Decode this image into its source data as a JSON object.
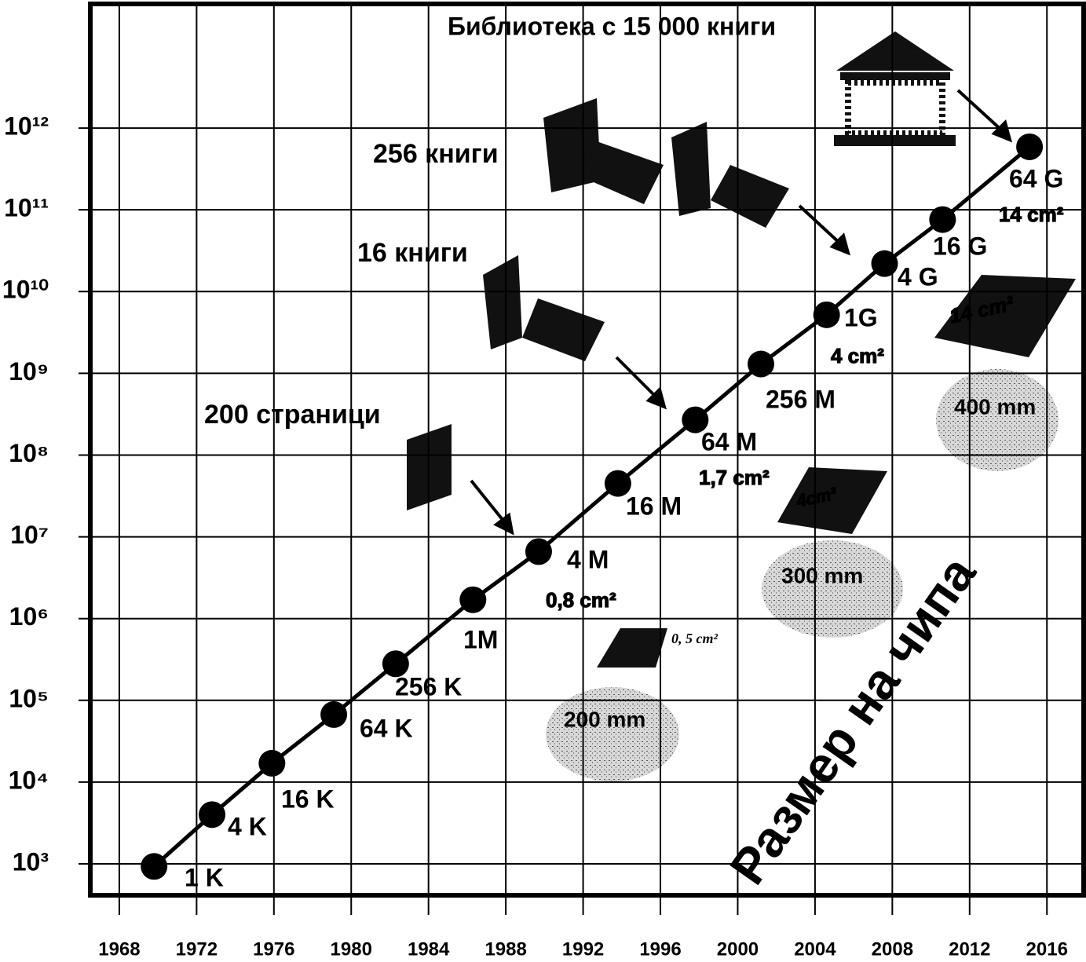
{
  "chart_data": {
    "type": "line",
    "log_y": true,
    "grid": true,
    "color": "#000000",
    "x": [
      1969.8,
      1972.8,
      1975.9,
      1979.1,
      1982.3,
      1986.3,
      1989.7,
      1993.8,
      1997.8,
      2001.2,
      2004.6,
      2007.6,
      2010.6,
      2015.1
    ],
    "values": [
      930,
      4000,
      17000,
      67000,
      280000,
      1700000,
      6600000,
      45000000,
      270000000,
      1300000000,
      5200000000,
      22000000000,
      76000000000,
      590000000000
    ],
    "point_labels": [
      "1 K",
      "4 K",
      "16 K",
      "64 K",
      "256 K",
      "1M",
      "4 M",
      "16 M",
      "64 M",
      "256 M",
      "1G",
      "4 G",
      "16 G",
      "64 G"
    ],
    "xlim": [
      1966.5,
      2017.9
    ],
    "xticks": [
      1968,
      1972,
      1976,
      1980,
      1984,
      1988,
      1992,
      1996,
      2000,
      2004,
      2008,
      2012,
      2016
    ],
    "ylim": [
      413,
      33000000000000
    ],
    "yticks": [
      {
        "value": 1000,
        "label": "10³"
      },
      {
        "value": 10000,
        "label": "10⁴"
      },
      {
        "value": 100000,
        "label": "10⁵"
      },
      {
        "value": 1000000,
        "label": "10⁶"
      },
      {
        "value": 10000000,
        "label": "10⁷"
      },
      {
        "value": 100000000,
        "label": "10⁸"
      },
      {
        "value": 1000000000,
        "label": "10⁹"
      },
      {
        "value": 10000000000,
        "label": "10¹⁰"
      },
      {
        "value": 100000000000,
        "label": "10¹¹"
      },
      {
        "value": 1000000000000,
        "label": "10¹²"
      }
    ],
    "annotations": [
      "Библиотека с 15 000 книги",
      "256 книги",
      "16 книги",
      "200 страници",
      "0,8 cm²",
      "1,7 cm²",
      "4 cm²",
      "14 cm²",
      "0, 5 cm²",
      "200 mm",
      "300 mm",
      "400 mm",
      "4cm²",
      "14 cm²",
      "Размер на чипа"
    ]
  }
}
